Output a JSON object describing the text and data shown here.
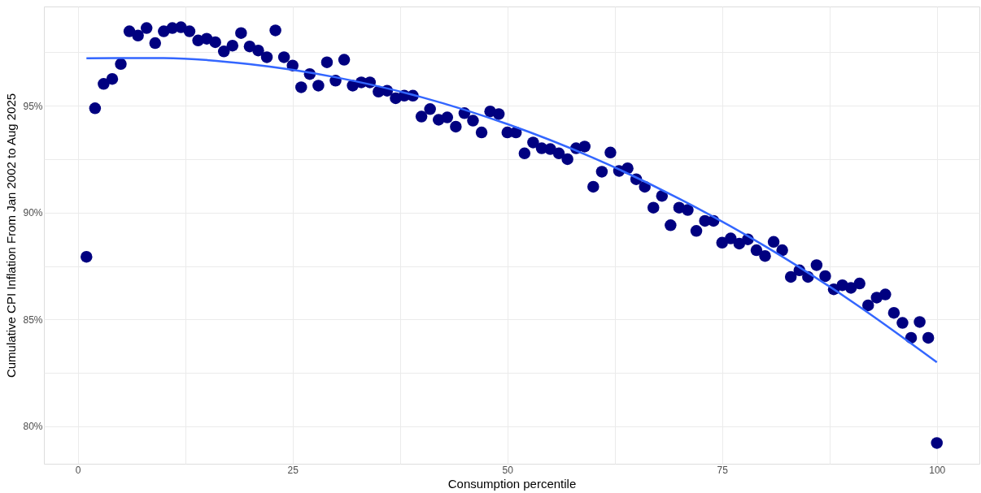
{
  "chart_data": {
    "type": "scatter",
    "xlabel": "Consumption percentile",
    "ylabel": "Cumulative CPI Inflation From Jan 2002 to Aug 2025",
    "xlim": [
      -3.95,
      104.95
    ],
    "xticks": [
      0,
      {
        "value": 12.5,
        "label": null
      },
      25,
      {
        "value": 37.5,
        "label": null
      },
      50,
      {
        "value": 62.5,
        "label": null
      },
      75,
      {
        "value": 87.5,
        "label": null
      },
      100
    ],
    "ylim": [
      78.25,
      99.64
    ],
    "yticks": [
      {
        "value": 80,
        "label": "80%"
      },
      {
        "value": 82.5,
        "label": null
      },
      {
        "value": 85,
        "label": "85%"
      },
      {
        "value": 87.5,
        "label": null
      },
      {
        "value": 90,
        "label": "90%"
      },
      {
        "value": 92.5,
        "label": null
      },
      {
        "value": 95,
        "label": "95%"
      },
      {
        "value": 97.5,
        "label": null
      }
    ],
    "grid": true,
    "series": [
      {
        "marker": "circle",
        "color": "#000080",
        "x": [
          1,
          2,
          3,
          4,
          5,
          6,
          7,
          8,
          9,
          10,
          11,
          12,
          13,
          14,
          15,
          16,
          17,
          18,
          19,
          20,
          21,
          22,
          23,
          24,
          25,
          26,
          27,
          28,
          29,
          30,
          31,
          32,
          33,
          34,
          35,
          36,
          37,
          38,
          39,
          40,
          41,
          42,
          43,
          44,
          45,
          46,
          47,
          48,
          49,
          50,
          51,
          52,
          53,
          54,
          55,
          56,
          57,
          58,
          59,
          60,
          61,
          62,
          63,
          64,
          65,
          66,
          67,
          68,
          69,
          70,
          71,
          72,
          73,
          74,
          75,
          76,
          77,
          78,
          79,
          80,
          81,
          82,
          83,
          84,
          85,
          86,
          87,
          88,
          89,
          90,
          91,
          92,
          93,
          94,
          95,
          96,
          97,
          98,
          99,
          100
        ],
        "values": [
          87.93,
          94.88,
          96.02,
          96.25,
          96.95,
          98.48,
          98.28,
          98.63,
          97.93,
          98.48,
          98.63,
          98.67,
          98.48,
          98.05,
          98.13,
          97.97,
          97.54,
          97.81,
          98.4,
          97.77,
          97.58,
          97.27,
          98.52,
          97.27,
          96.88,
          95.86,
          96.48,
          95.94,
          97.03,
          96.17,
          97.15,
          95.94,
          96.09,
          96.09,
          95.66,
          95.7,
          95.35,
          95.47,
          95.47,
          94.49,
          94.84,
          94.34,
          94.45,
          94.02,
          94.65,
          94.3,
          93.75,
          94.73,
          94.61,
          93.75,
          93.75,
          92.77,
          93.28,
          93.01,
          92.97,
          92.77,
          92.5,
          93.01,
          93.09,
          91.21,
          91.91,
          92.81,
          91.95,
          92.07,
          91.56,
          91.21,
          90.23,
          90.78,
          89.41,
          90.23,
          90.12,
          89.14,
          89.61,
          89.61,
          88.59,
          88.79,
          88.55,
          88.75,
          88.24,
          87.97,
          88.63,
          88.24,
          86.99,
          87.3,
          86.99,
          87.54,
          87.03,
          86.41,
          86.6,
          86.48,
          86.68,
          85.66,
          86.02,
          86.17,
          85.31,
          84.84,
          84.14,
          84.88,
          84.14,
          79.22
        ]
      },
      {
        "type": "line",
        "color": "#3366ff",
        "line_style": "solid",
        "x": [
          1,
          10,
          20,
          30,
          40,
          50,
          60,
          70,
          80,
          90,
          100
        ],
        "values": [
          97.22,
          97.23,
          96.94,
          96.33,
          95.4,
          94.14,
          92.56,
          90.65,
          88.43,
          85.87,
          83.0
        ]
      }
    ]
  }
}
